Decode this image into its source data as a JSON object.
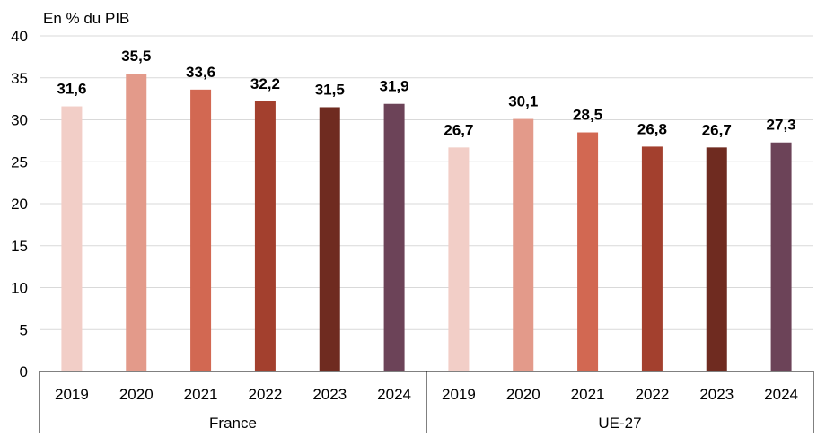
{
  "chart_data": {
    "type": "bar",
    "title": "",
    "ylabel": "En % du PIB",
    "xlabel": "",
    "ylim": [
      0,
      40
    ],
    "yticks": [
      0,
      5,
      10,
      15,
      20,
      25,
      30,
      35,
      40
    ],
    "grid": true,
    "legend": "none",
    "year_labels": [
      "2019",
      "2020",
      "2021",
      "2022",
      "2023",
      "2024"
    ],
    "year_colors": [
      "#f2cec7",
      "#e39a8a",
      "#d26852",
      "#a3402e",
      "#6f2b20",
      "#6c4358"
    ],
    "groups": [
      {
        "name": "France",
        "values": [
          31.6,
          35.5,
          33.6,
          32.2,
          31.5,
          31.9
        ],
        "labels": [
          "31,6",
          "35,5",
          "33,6",
          "32,2",
          "31,5",
          "31,9"
        ]
      },
      {
        "name": "UE-27",
        "values": [
          26.7,
          30.1,
          28.5,
          26.8,
          26.7,
          27.3
        ],
        "labels": [
          "26,7",
          "30,1",
          "28,5",
          "26,8",
          "26,7",
          "27,3"
        ]
      }
    ]
  },
  "colors": {
    "grid": "#d9d9d9",
    "axis": "#000000"
  }
}
